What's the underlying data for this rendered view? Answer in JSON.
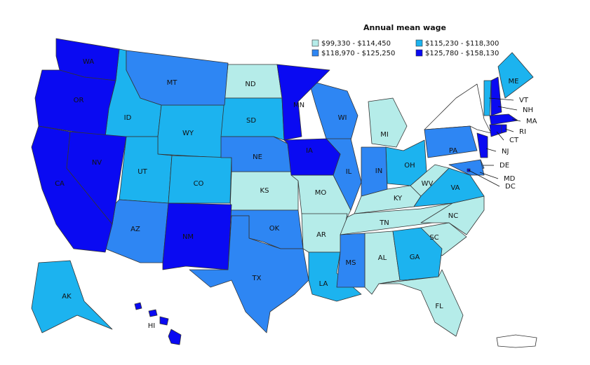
{
  "legend": {
    "title": "Annual mean wage",
    "items": [
      {
        "label": "$99,330 - $114,450",
        "color": "#b5ece9",
        "states": [
          "ND",
          "KS",
          "MO",
          "AR",
          "KY",
          "TN",
          "AL",
          "NC",
          "SC",
          "MI",
          "WV",
          "FL"
        ]
      },
      {
        "label": "$115,230 - $118,300",
        "color": "#1cb3ef",
        "states": [
          "AK",
          "ID",
          "WY",
          "SD",
          "UT",
          "CO",
          "OH",
          "VA",
          "GA",
          "LA",
          "ME",
          "VT"
        ]
      },
      {
        "label": "$118,970 - $125,250",
        "color": "#2e86f3",
        "states": [
          "MT",
          "NE",
          "OK",
          "TX",
          "AZ",
          "WI",
          "IL",
          "IN",
          "PA",
          "MS",
          "DE",
          "MD"
        ]
      },
      {
        "label": "$125,780 - $158,130",
        "color": "#0a0af2",
        "states": [
          "WA",
          "OR",
          "CA",
          "NV",
          "MN",
          "IA",
          "NM",
          "HI",
          "NJ",
          "MA",
          "NH",
          "CT",
          "RI",
          "DC"
        ]
      }
    ]
  }
}
